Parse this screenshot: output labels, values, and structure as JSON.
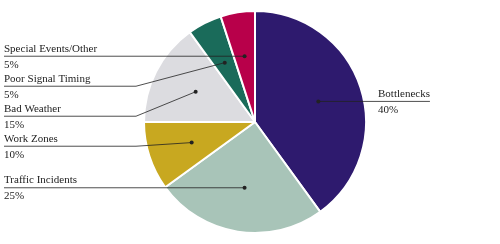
{
  "chart_data": {
    "type": "pie",
    "categories": [
      "Bottlenecks",
      "Traffic Incidents",
      "Work Zones",
      "Bad Weather",
      "Poor Signal Timing",
      "Special Events/Other"
    ],
    "values": [
      40,
      25,
      10,
      15,
      5,
      5
    ],
    "value_labels": [
      "40%",
      "25%",
      "10%",
      "15%",
      "5%",
      "5%"
    ],
    "colors": [
      "#2E1A6E",
      "#A8C4B8",
      "#C8A820",
      "#DCDCE0",
      "#1A6B5A",
      "#B8004A"
    ],
    "data_labels": true
  }
}
